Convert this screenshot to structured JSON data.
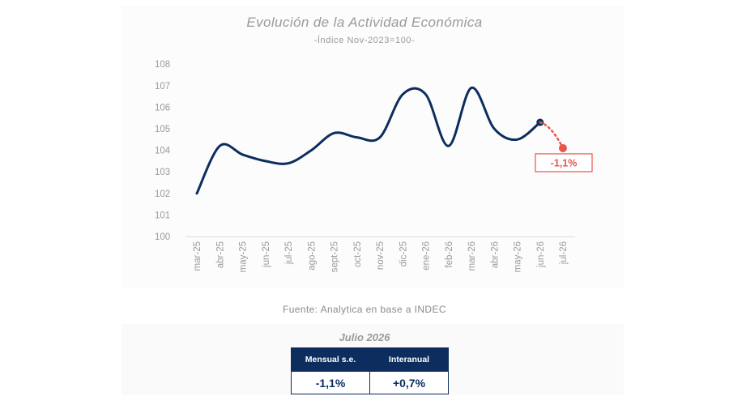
{
  "chart_data": {
    "type": "line",
    "title": "Evolución de la Actividad Económica",
    "subtitle": "-Índice Nov-2023=100-",
    "categories": [
      "mar-25",
      "abr-25",
      "may-25",
      "jun-25",
      "jul-25",
      "ago-25",
      "sept-25",
      "oct-25",
      "nov-25",
      "dic-25",
      "ene-26",
      "feb-26",
      "mar-26",
      "abr-26",
      "may-26",
      "jun-26",
      "jul-26"
    ],
    "series": [
      {
        "values": [
          102.0,
          104.2,
          103.8,
          103.5,
          103.4,
          104.0,
          104.8,
          104.6,
          104.6,
          106.6,
          106.6,
          104.2,
          106.9,
          105.0,
          104.5,
          105.3,
          null
        ]
      }
    ],
    "projection": {
      "from": "jun-26",
      "to": "jul-26",
      "from_value": 105.3,
      "to_value": 104.1,
      "label": "-1,1%"
    },
    "yticks": [
      "100",
      "101",
      "102",
      "103",
      "104",
      "105",
      "106",
      "107",
      "108"
    ],
    "ylim": [
      100,
      108
    ],
    "colors": {
      "line": "#0d2d5e",
      "projection": "#e8564a",
      "axis_text": "#9a9a9a"
    }
  },
  "source": "Fuente: Analytica en base a INDEC",
  "summary": {
    "title": "Julio 2026",
    "headers": [
      "Mensual s.e.",
      "Interanual"
    ],
    "values": [
      "-1,1%",
      "+0,7%"
    ]
  }
}
